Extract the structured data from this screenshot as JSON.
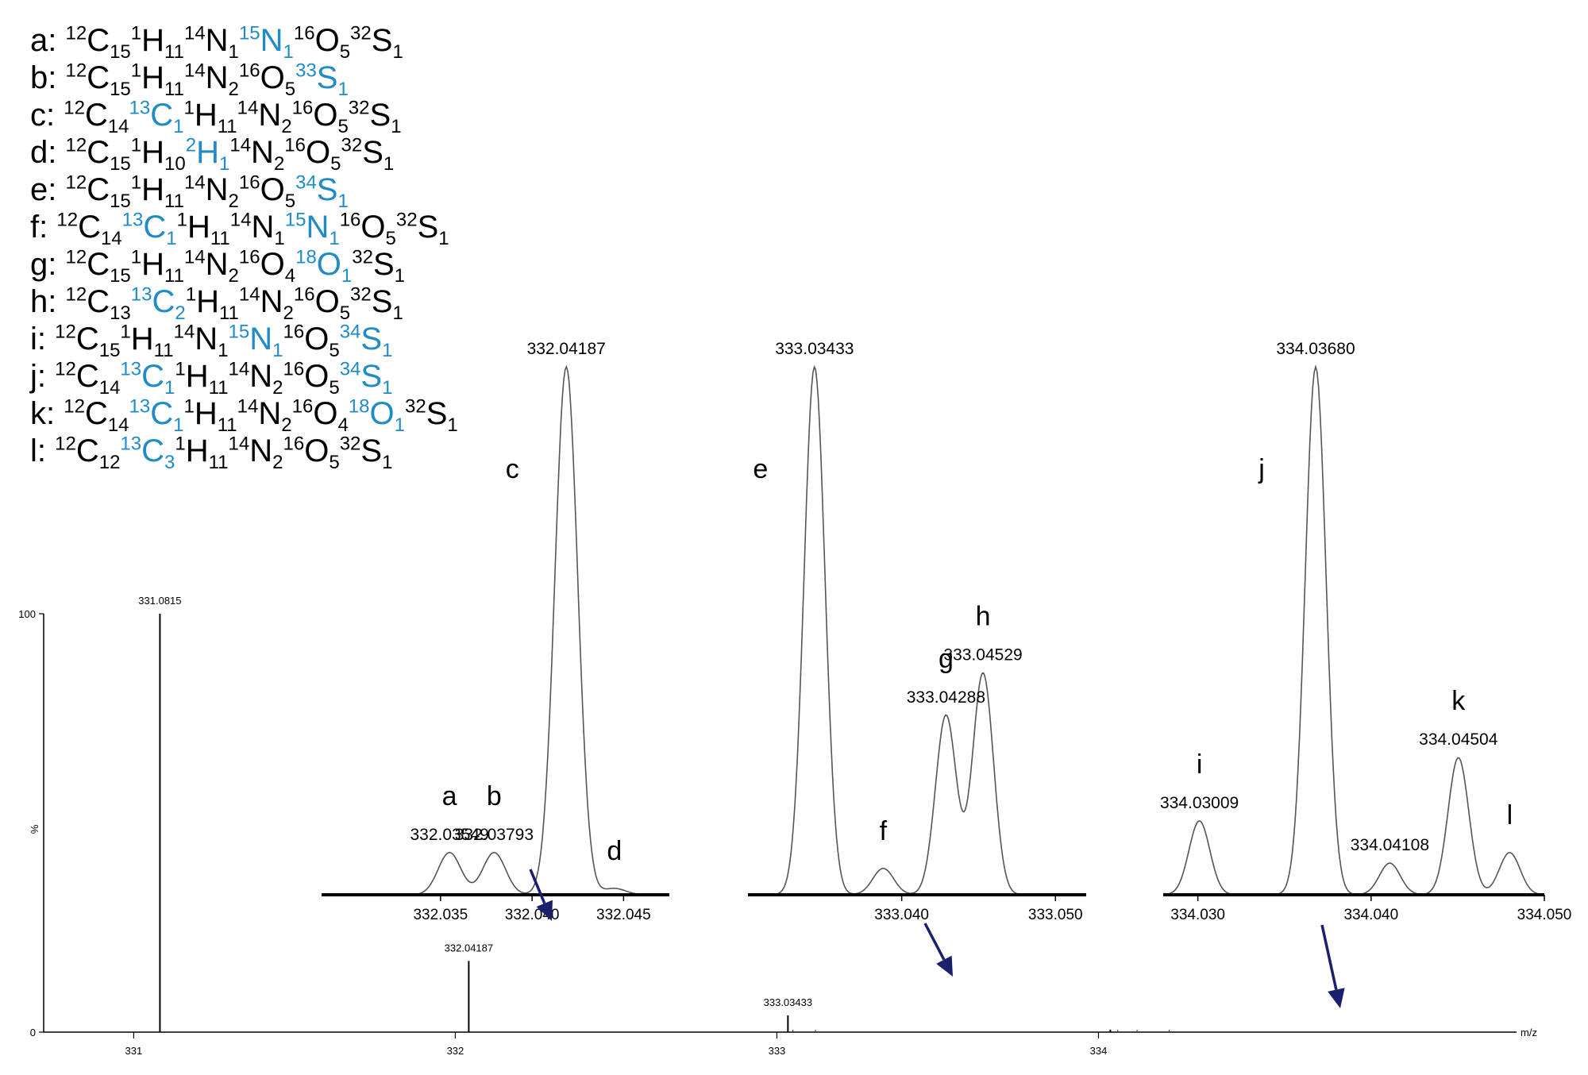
{
  "legend": [
    {
      "letter": "a",
      "atoms": [
        {
          "mass": "12",
          "el": "C",
          "count": "15",
          "iso": false
        },
        {
          "mass": "1",
          "el": "H",
          "count": "11",
          "iso": false
        },
        {
          "mass": "14",
          "el": "N",
          "count": "1",
          "iso": false
        },
        {
          "mass": "15",
          "el": "N",
          "count": "1",
          "iso": true
        },
        {
          "mass": "16",
          "el": "O",
          "count": "5",
          "iso": false
        },
        {
          "mass": "32",
          "el": "S",
          "count": "1",
          "iso": false
        }
      ]
    },
    {
      "letter": "b",
      "atoms": [
        {
          "mass": "12",
          "el": "C",
          "count": "15",
          "iso": false
        },
        {
          "mass": "1",
          "el": "H",
          "count": "11",
          "iso": false
        },
        {
          "mass": "14",
          "el": "N",
          "count": "2",
          "iso": false
        },
        {
          "mass": "16",
          "el": "O",
          "count": "5",
          "iso": false
        },
        {
          "mass": "33",
          "el": "S",
          "count": "1",
          "iso": true
        }
      ]
    },
    {
      "letter": "c",
      "atoms": [
        {
          "mass": "12",
          "el": "C",
          "count": "14",
          "iso": false
        },
        {
          "mass": "13",
          "el": "C",
          "count": "1",
          "iso": true
        },
        {
          "mass": "1",
          "el": "H",
          "count": "11",
          "iso": false
        },
        {
          "mass": "14",
          "el": "N",
          "count": "2",
          "iso": false
        },
        {
          "mass": "16",
          "el": "O",
          "count": "5",
          "iso": false
        },
        {
          "mass": "32",
          "el": "S",
          "count": "1",
          "iso": false
        }
      ]
    },
    {
      "letter": "d",
      "atoms": [
        {
          "mass": "12",
          "el": "C",
          "count": "15",
          "iso": false
        },
        {
          "mass": "1",
          "el": "H",
          "count": "10",
          "iso": false
        },
        {
          "mass": "2",
          "el": "H",
          "count": "1",
          "iso": true
        },
        {
          "mass": "14",
          "el": "N",
          "count": "2",
          "iso": false
        },
        {
          "mass": "16",
          "el": "O",
          "count": "5",
          "iso": false
        },
        {
          "mass": "32",
          "el": "S",
          "count": "1",
          "iso": false
        }
      ]
    },
    {
      "letter": "e",
      "atoms": [
        {
          "mass": "12",
          "el": "C",
          "count": "15",
          "iso": false
        },
        {
          "mass": "1",
          "el": "H",
          "count": "11",
          "iso": false
        },
        {
          "mass": "14",
          "el": "N",
          "count": "2",
          "iso": false
        },
        {
          "mass": "16",
          "el": "O",
          "count": "5",
          "iso": false
        },
        {
          "mass": "34",
          "el": "S",
          "count": "1",
          "iso": true
        }
      ]
    },
    {
      "letter": "f",
      "atoms": [
        {
          "mass": "12",
          "el": "C",
          "count": "14",
          "iso": false
        },
        {
          "mass": "13",
          "el": "C",
          "count": "1",
          "iso": true
        },
        {
          "mass": "1",
          "el": "H",
          "count": "11",
          "iso": false
        },
        {
          "mass": "14",
          "el": "N",
          "count": "1",
          "iso": false
        },
        {
          "mass": "15",
          "el": "N",
          "count": "1",
          "iso": true
        },
        {
          "mass": "16",
          "el": "O",
          "count": "5",
          "iso": false
        },
        {
          "mass": "32",
          "el": "S",
          "count": "1",
          "iso": false
        }
      ]
    },
    {
      "letter": "g",
      "atoms": [
        {
          "mass": "12",
          "el": "C",
          "count": "15",
          "iso": false
        },
        {
          "mass": "1",
          "el": "H",
          "count": "11",
          "iso": false
        },
        {
          "mass": "14",
          "el": "N",
          "count": "2",
          "iso": false
        },
        {
          "mass": "16",
          "el": "O",
          "count": "4",
          "iso": false
        },
        {
          "mass": "18",
          "el": "O",
          "count": "1",
          "iso": true
        },
        {
          "mass": "32",
          "el": "S",
          "count": "1",
          "iso": false
        }
      ]
    },
    {
      "letter": "h",
      "atoms": [
        {
          "mass": "12",
          "el": "C",
          "count": "13",
          "iso": false
        },
        {
          "mass": "13",
          "el": "C",
          "count": "2",
          "iso": true
        },
        {
          "mass": "1",
          "el": "H",
          "count": "11",
          "iso": false
        },
        {
          "mass": "14",
          "el": "N",
          "count": "2",
          "iso": false
        },
        {
          "mass": "16",
          "el": "O",
          "count": "5",
          "iso": false
        },
        {
          "mass": "32",
          "el": "S",
          "count": "1",
          "iso": false
        }
      ]
    },
    {
      "letter": "i",
      "atoms": [
        {
          "mass": "12",
          "el": "C",
          "count": "15",
          "iso": false
        },
        {
          "mass": "1",
          "el": "H",
          "count": "11",
          "iso": false
        },
        {
          "mass": "14",
          "el": "N",
          "count": "1",
          "iso": false
        },
        {
          "mass": "15",
          "el": "N",
          "count": "1",
          "iso": true
        },
        {
          "mass": "16",
          "el": "O",
          "count": "5",
          "iso": false
        },
        {
          "mass": "34",
          "el": "S",
          "count": "1",
          "iso": true
        }
      ]
    },
    {
      "letter": "j",
      "atoms": [
        {
          "mass": "12",
          "el": "C",
          "count": "14",
          "iso": false
        },
        {
          "mass": "13",
          "el": "C",
          "count": "1",
          "iso": true
        },
        {
          "mass": "1",
          "el": "H",
          "count": "11",
          "iso": false
        },
        {
          "mass": "14",
          "el": "N",
          "count": "2",
          "iso": false
        },
        {
          "mass": "16",
          "el": "O",
          "count": "5",
          "iso": false
        },
        {
          "mass": "34",
          "el": "S",
          "count": "1",
          "iso": true
        }
      ]
    },
    {
      "letter": "k",
      "atoms": [
        {
          "mass": "12",
          "el": "C",
          "count": "14",
          "iso": false
        },
        {
          "mass": "13",
          "el": "C",
          "count": "1",
          "iso": true
        },
        {
          "mass": "1",
          "el": "H",
          "count": "11",
          "iso": false
        },
        {
          "mass": "14",
          "el": "N",
          "count": "2",
          "iso": false
        },
        {
          "mass": "16",
          "el": "O",
          "count": "4",
          "iso": false
        },
        {
          "mass": "18",
          "el": "O",
          "count": "1",
          "iso": true
        },
        {
          "mass": "32",
          "el": "S",
          "count": "1",
          "iso": false
        }
      ]
    },
    {
      "letter": "l",
      "atoms": [
        {
          "mass": "12",
          "el": "C",
          "count": "12",
          "iso": false
        },
        {
          "mass": "13",
          "el": "C",
          "count": "3",
          "iso": true
        },
        {
          "mass": "1",
          "el": "H",
          "count": "11",
          "iso": false
        },
        {
          "mass": "14",
          "el": "N",
          "count": "2",
          "iso": false
        },
        {
          "mass": "16",
          "el": "O",
          "count": "5",
          "iso": false
        },
        {
          "mass": "32",
          "el": "S",
          "count": "1",
          "iso": false
        }
      ]
    }
  ],
  "colors": {
    "isotope": "#1f8bc8",
    "arrow": "#1a1f6e",
    "trace": "#555555",
    "axis": "#000000"
  },
  "chart_data": {
    "type": "line",
    "main": {
      "xlabel": "m/z",
      "ylabel": "%",
      "xlim": [
        330.72,
        335.3
      ],
      "ylim": [
        0,
        100
      ],
      "xticks": [
        331,
        332,
        333,
        334
      ],
      "yticks": [
        0,
        100
      ],
      "peaks": [
        {
          "mz": 331.0815,
          "intensity": 100,
          "label": "331.0815"
        },
        {
          "mz": 332.04187,
          "intensity": 17,
          "label": "332.04187"
        },
        {
          "mz": 333.03433,
          "intensity": 4,
          "label": "333.03433"
        },
        {
          "mz": 334.0368,
          "intensity": 0.6,
          "label": ""
        }
      ]
    },
    "insets": [
      {
        "name": "332",
        "xlim": [
          332.0285,
          332.0475
        ],
        "xticks": [
          "332.035",
          "332.040",
          "332.045"
        ],
        "xtick_values": [
          332.035,
          332.04,
          332.045
        ],
        "peaks": [
          {
            "mz": 332.03549,
            "intensity": 8,
            "label": "332.03549",
            "letter": "a"
          },
          {
            "mz": 332.03793,
            "intensity": 8,
            "label": "332.03793",
            "letter": "b"
          },
          {
            "mz": 332.04187,
            "intensity": 100,
            "label": "332.04187",
            "letter": "c"
          },
          {
            "mz": 332.0445,
            "intensity": 1.2,
            "label": "",
            "letter": "d"
          }
        ]
      },
      {
        "name": "333",
        "xlim": [
          333.03,
          333.052
        ],
        "xticks": [
          "333.040",
          "333.050"
        ],
        "xtick_values": [
          333.04,
          333.05
        ],
        "peaks": [
          {
            "mz": 333.03433,
            "intensity": 100,
            "label": "333.03433",
            "letter": "e"
          },
          {
            "mz": 333.0388,
            "intensity": 5,
            "label": "",
            "letter": "f"
          },
          {
            "mz": 333.04288,
            "intensity": 34,
            "label": "333.04288",
            "letter": "g"
          },
          {
            "mz": 333.04529,
            "intensity": 42,
            "label": "333.04529",
            "letter": "h"
          }
        ]
      },
      {
        "name": "334",
        "xlim": [
          334.028,
          334.05
        ],
        "xticks": [
          "334.030",
          "334.040",
          "334.050"
        ],
        "xtick_values": [
          334.03,
          334.04,
          334.05
        ],
        "peaks": [
          {
            "mz": 334.03009,
            "intensity": 14,
            "label": "334.03009",
            "letter": "i"
          },
          {
            "mz": 334.0368,
            "intensity": 100,
            "label": "334.03680",
            "letter": "j"
          },
          {
            "mz": 334.04108,
            "intensity": 6,
            "label": "334.04108",
            "letter": ""
          },
          {
            "mz": 334.04504,
            "intensity": 26,
            "label": "334.04504",
            "letter": "k"
          },
          {
            "mz": 334.048,
            "intensity": 8,
            "label": "",
            "letter": "l"
          }
        ]
      }
    ]
  }
}
